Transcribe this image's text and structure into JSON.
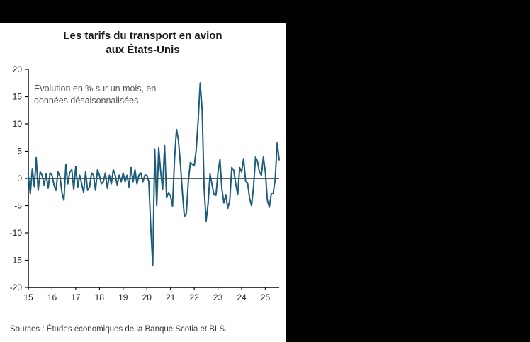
{
  "window": {
    "background_color": "#000000",
    "panel_background": "#ffffff"
  },
  "panel": {
    "title_line1": "Les tarifs du transport en avion",
    "title_line2": "aux États-Unis",
    "source": "Sources : Études économiques de la Banque Scotia et BLS."
  },
  "chart_data": {
    "type": "line",
    "title": "Les tarifs du transport en avion aux États-Unis",
    "subtitle": "Évolution en % sur un mois, en données désaisonnalisées",
    "annotation_lines": [
      "Évolution en % sur un mois, en",
      "données désaisonnalisées"
    ],
    "xlabel": "",
    "ylabel": "",
    "ylim": [
      -20,
      20
    ],
    "y_ticks": [
      20,
      15,
      10,
      5,
      0,
      -5,
      -10,
      -15,
      -20
    ],
    "x_tick_labels": [
      "15",
      "16",
      "17",
      "18",
      "19",
      "20",
      "21",
      "22",
      "23",
      "24",
      "25"
    ],
    "x_start": "2015-01",
    "frequency": "monthly",
    "grid": false,
    "legend": "none",
    "line_color": "#1d5d7b",
    "axis_color": "#000000",
    "zero_line": true,
    "values": [
      0.5,
      -2.8,
      1.8,
      -1.5,
      3.8,
      -2.2,
      1.2,
      0.6,
      -1.2,
      0.8,
      -1.8,
      1.0,
      0.6,
      -1.2,
      -2.2,
      1.2,
      0.4,
      -2.6,
      -4.0,
      2.6,
      -1.0,
      1.2,
      1.6,
      -2.0,
      2.2,
      -1.6,
      0.6,
      -1.0,
      -2.6,
      1.2,
      -2.2,
      -1.6,
      1.0,
      0.6,
      -2.2,
      1.6,
      0.6,
      -1.0,
      -0.6,
      1.0,
      -1.8,
      0.6,
      -1.0,
      1.6,
      0.6,
      -1.2,
      0.6,
      -0.6,
      1.0,
      -0.6,
      0.6,
      -1.6,
      2.0,
      -0.6,
      1.6,
      -1.0,
      0.6,
      1.0,
      -0.6,
      0.6,
      0.6,
      -0.6,
      -9.0,
      -15.9,
      5.4,
      -5.0,
      5.6,
      1.2,
      -2.0,
      6.0,
      -3.5,
      -2.6,
      -3.2,
      -5.1,
      3.5,
      9.0,
      7.0,
      2.7,
      -2.5,
      -7.0,
      -6.4,
      -0.6,
      2.9,
      2.6,
      2.3,
      5.2,
      10.7,
      17.5,
      12.6,
      -1.8,
      -7.8,
      -4.6,
      0.8,
      -1.1,
      -3.0,
      -3.1,
      1.0,
      3.5,
      -2.0,
      -4.5,
      -3.0,
      -5.5,
      -4.0,
      2.0,
      1.5,
      -1.0,
      -3.0,
      2.0,
      1.2,
      3.6,
      -0.5,
      -0.8,
      -3.6,
      -5.0,
      -1.6,
      3.9,
      3.2,
      1.2,
      0.6,
      3.9,
      1.2,
      -4.0,
      -5.3,
      -2.8,
      -2.7,
      -0.1,
      6.5,
      3.4
    ]
  }
}
